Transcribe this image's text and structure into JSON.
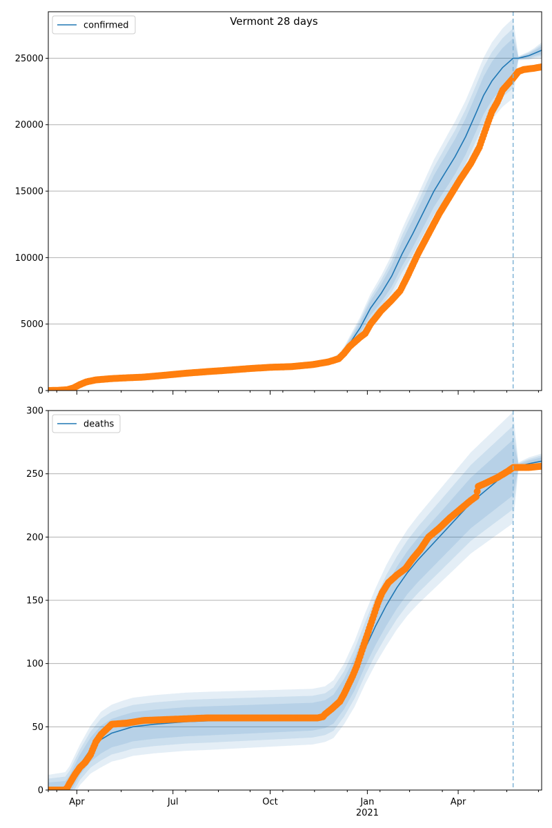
{
  "figure": {
    "title": "Vermont 28 days"
  },
  "colors": {
    "model": "#1f77b4",
    "observed": "#ff7f0e",
    "band": "#1f77b4",
    "grid": "#b0b0b0",
    "forecast_line": "#7fb3d5"
  },
  "chart_data": [
    {
      "type": "line",
      "title": "Vermont 28 days",
      "legend": {
        "label": "confirmed",
        "placement": "top-left"
      },
      "ylim": [
        0,
        28500
      ],
      "yticks": [
        0,
        5000,
        10000,
        15000,
        20000,
        25000
      ],
      "grid": "y",
      "x_range_days": [
        0,
        467
      ],
      "forecast_start_day": 440,
      "xtick_days": [
        27,
        118,
        210,
        302,
        388
      ],
      "xtick_labels": [
        "Apr",
        "Jul",
        "Oct",
        "Jan",
        "Apr"
      ],
      "xtick_sublabels": [
        "",
        "",
        "",
        "2021",
        ""
      ],
      "observed_points": [
        [
          0,
          0
        ],
        [
          10,
          20
        ],
        [
          18,
          60
        ],
        [
          24,
          200
        ],
        [
          30,
          450
        ],
        [
          36,
          650
        ],
        [
          45,
          800
        ],
        [
          60,
          900
        ],
        [
          75,
          960
        ],
        [
          90,
          1010
        ],
        [
          110,
          1150
        ],
        [
          130,
          1300
        ],
        [
          150,
          1420
        ],
        [
          170,
          1530
        ],
        [
          190,
          1650
        ],
        [
          210,
          1750
        ],
        [
          230,
          1800
        ],
        [
          250,
          1950
        ],
        [
          265,
          2150
        ],
        [
          275,
          2400
        ],
        [
          280,
          2800
        ],
        [
          285,
          3300
        ],
        [
          295,
          4000
        ],
        [
          300,
          4300
        ],
        [
          305,
          5000
        ],
        [
          315,
          6000
        ],
        [
          325,
          6800
        ],
        [
          333,
          7500
        ],
        [
          340,
          8600
        ],
        [
          350,
          10300
        ],
        [
          360,
          11800
        ],
        [
          370,
          13300
        ],
        [
          380,
          14600
        ],
        [
          390,
          15900
        ],
        [
          400,
          17100
        ],
        [
          408,
          18300
        ],
        [
          415,
          19900
        ],
        [
          420,
          21000
        ],
        [
          425,
          21700
        ],
        [
          430,
          22600
        ],
        [
          440,
          23500
        ],
        [
          445,
          24000
        ],
        [
          450,
          24150
        ],
        [
          460,
          24250
        ],
        [
          467,
          24350
        ]
      ],
      "model_points": [
        [
          0,
          0
        ],
        [
          10,
          20
        ],
        [
          18,
          60
        ],
        [
          24,
          200
        ],
        [
          30,
          450
        ],
        [
          36,
          650
        ],
        [
          45,
          800
        ],
        [
          60,
          900
        ],
        [
          75,
          960
        ],
        [
          90,
          1010
        ],
        [
          110,
          1150
        ],
        [
          130,
          1300
        ],
        [
          150,
          1420
        ],
        [
          170,
          1530
        ],
        [
          190,
          1650
        ],
        [
          210,
          1750
        ],
        [
          230,
          1800
        ],
        [
          250,
          1950
        ],
        [
          265,
          2150
        ],
        [
          275,
          2450
        ],
        [
          280,
          2900
        ],
        [
          285,
          3500
        ],
        [
          295,
          4700
        ],
        [
          305,
          6200
        ],
        [
          315,
          7300
        ],
        [
          325,
          8600
        ],
        [
          335,
          10300
        ],
        [
          345,
          11800
        ],
        [
          355,
          13400
        ],
        [
          365,
          15000
        ],
        [
          375,
          16300
        ],
        [
          385,
          17600
        ],
        [
          395,
          19100
        ],
        [
          405,
          20900
        ],
        [
          412,
          22200
        ],
        [
          420,
          23300
        ],
        [
          430,
          24300
        ],
        [
          440,
          25000
        ],
        [
          445,
          25000
        ],
        [
          455,
          25200
        ],
        [
          467,
          25600
        ]
      ],
      "band_half_widths": [
        [
          0,
          10
        ],
        [
          260,
          100
        ],
        [
          280,
          400
        ],
        [
          310,
          1200
        ],
        [
          340,
          2000
        ],
        [
          380,
          2600
        ],
        [
          420,
          2900
        ],
        [
          440,
          3000
        ],
        [
          445,
          150
        ],
        [
          460,
          400
        ],
        [
          467,
          600
        ]
      ]
    },
    {
      "type": "line",
      "legend": {
        "label": "deaths",
        "placement": "top-left"
      },
      "ylim": [
        0,
        300
      ],
      "yticks": [
        0,
        50,
        100,
        150,
        200,
        250,
        300
      ],
      "grid": "y",
      "x_range_days": [
        0,
        467
      ],
      "forecast_start_day": 440,
      "xtick_days": [
        27,
        118,
        210,
        302,
        388
      ],
      "xtick_labels": [
        "Apr",
        "Jul",
        "Oct",
        "Jan",
        "Apr"
      ],
      "xtick_sublabels": [
        "",
        "",
        "",
        "2021",
        ""
      ],
      "observed_points": [
        [
          0,
          0
        ],
        [
          16,
          0
        ],
        [
          18,
          2
        ],
        [
          20,
          5
        ],
        [
          25,
          12
        ],
        [
          30,
          18
        ],
        [
          35,
          22
        ],
        [
          40,
          28
        ],
        [
          45,
          38
        ],
        [
          50,
          44
        ],
        [
          55,
          48
        ],
        [
          60,
          52
        ],
        [
          75,
          53
        ],
        [
          90,
          55
        ],
        [
          120,
          56
        ],
        [
          150,
          57
        ],
        [
          180,
          57
        ],
        [
          210,
          57
        ],
        [
          240,
          57
        ],
        [
          250,
          57
        ],
        [
          255,
          57
        ],
        [
          260,
          58
        ],
        [
          262,
          60
        ],
        [
          265,
          62
        ],
        [
          268,
          64
        ],
        [
          272,
          67
        ],
        [
          276,
          70
        ],
        [
          280,
          76
        ],
        [
          284,
          83
        ],
        [
          288,
          90
        ],
        [
          292,
          98
        ],
        [
          296,
          108
        ],
        [
          300,
          118
        ],
        [
          304,
          128
        ],
        [
          308,
          138
        ],
        [
          312,
          148
        ],
        [
          316,
          156
        ],
        [
          322,
          164
        ],
        [
          330,
          170
        ],
        [
          338,
          175
        ],
        [
          345,
          183
        ],
        [
          352,
          190
        ],
        [
          360,
          200
        ],
        [
          370,
          207
        ],
        [
          380,
          215
        ],
        [
          390,
          222
        ],
        [
          400,
          229
        ],
        [
          405,
          232
        ],
        [
          407,
          240
        ],
        [
          415,
          243
        ],
        [
          425,
          247
        ],
        [
          435,
          252
        ],
        [
          440,
          255
        ],
        [
          445,
          255
        ],
        [
          455,
          255
        ],
        [
          467,
          256
        ]
      ],
      "model_points": [
        [
          0,
          0
        ],
        [
          16,
          0
        ],
        [
          20,
          4
        ],
        [
          30,
          20
        ],
        [
          40,
          32
        ],
        [
          50,
          40
        ],
        [
          60,
          45
        ],
        [
          80,
          50
        ],
        [
          100,
          52
        ],
        [
          130,
          54
        ],
        [
          160,
          55
        ],
        [
          190,
          56
        ],
        [
          220,
          57
        ],
        [
          250,
          58
        ],
        [
          262,
          60
        ],
        [
          270,
          64
        ],
        [
          280,
          76
        ],
        [
          290,
          92
        ],
        [
          300,
          112
        ],
        [
          310,
          130
        ],
        [
          320,
          146
        ],
        [
          330,
          160
        ],
        [
          340,
          172
        ],
        [
          350,
          182
        ],
        [
          360,
          191
        ],
        [
          370,
          200
        ],
        [
          380,
          209
        ],
        [
          390,
          218
        ],
        [
          400,
          227
        ],
        [
          410,
          234
        ],
        [
          420,
          241
        ],
        [
          430,
          248
        ],
        [
          440,
          255
        ],
        [
          445,
          256
        ],
        [
          455,
          258
        ],
        [
          467,
          260
        ]
      ],
      "band_half_widths": [
        [
          0,
          12
        ],
        [
          30,
          16
        ],
        [
          50,
          22
        ],
        [
          70,
          23
        ],
        [
          150,
          23
        ],
        [
          250,
          22
        ],
        [
          262,
          22
        ],
        [
          280,
          24
        ],
        [
          300,
          28
        ],
        [
          320,
          32
        ],
        [
          340,
          34
        ],
        [
          360,
          36
        ],
        [
          380,
          38
        ],
        [
          400,
          40
        ],
        [
          420,
          42
        ],
        [
          440,
          44
        ],
        [
          445,
          3
        ],
        [
          455,
          5
        ],
        [
          467,
          6
        ]
      ]
    }
  ]
}
